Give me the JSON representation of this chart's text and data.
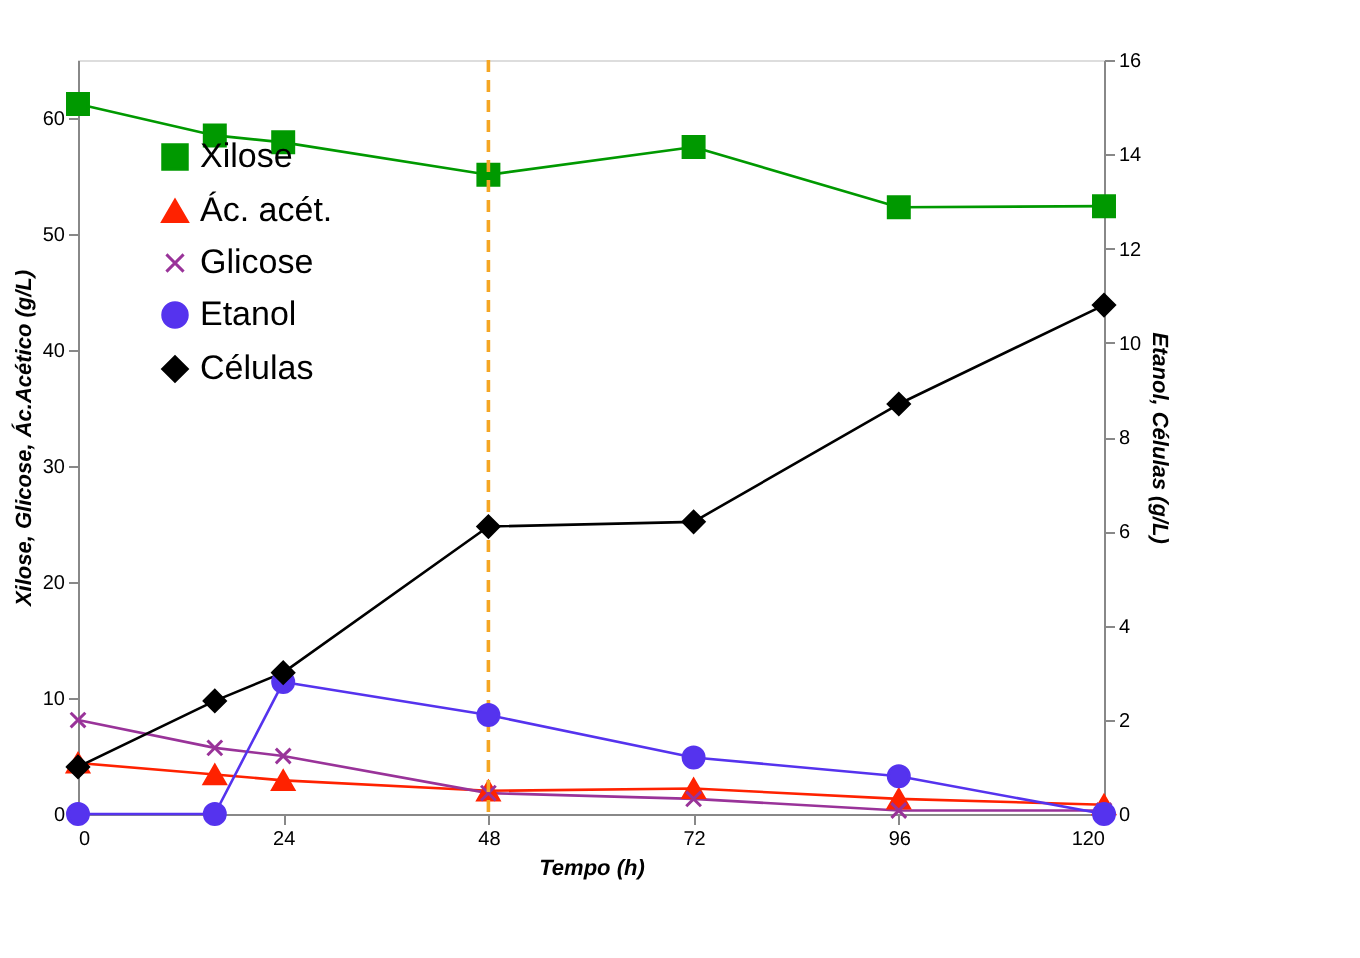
{
  "chart_data": {
    "type": "line",
    "xlabel": "Tempo (h)",
    "ylabel": "Xilose, Glicose, Ác.Acético (g/L)",
    "y2label": "Etanol, Células (g/L)",
    "x": [
      0,
      16,
      24,
      48,
      72,
      96,
      120
    ],
    "xlim": [
      0,
      120
    ],
    "xticks": [
      0,
      24,
      48,
      72,
      96,
      120
    ],
    "ylim": [
      0,
      65
    ],
    "yticks": [
      0,
      10,
      20,
      30,
      40,
      50,
      60
    ],
    "y2lim": [
      0,
      16
    ],
    "y2ticks": [
      0,
      2,
      4,
      6,
      8,
      10,
      12,
      14,
      16
    ],
    "series": [
      {
        "name": "Xilose",
        "color": "#009900",
        "marker": "square",
        "values": [
          61.2,
          58.5,
          57.9,
          55.1,
          57.5,
          52.3,
          52.4
        ]
      },
      {
        "name": "Ác. acét.",
        "color": "#ff2200",
        "marker": "triangle",
        "values": [
          4.4,
          3.4,
          2.9,
          2.0,
          2.2,
          1.3,
          0.8
        ]
      },
      {
        "name": "Glicose",
        "color": "#993399",
        "marker": "cross",
        "values": [
          8.1,
          5.7,
          5.0,
          1.8,
          1.3,
          0.3,
          0.3
        ]
      },
      {
        "name": "Etanol",
        "color": "#5533ee",
        "marker": "circle",
        "axis": "y2",
        "values": [
          0,
          0,
          2.8,
          2.1,
          1.2,
          0.8,
          0
        ]
      },
      {
        "name": "Células",
        "color": "#000000",
        "marker": "diamond",
        "axis": "y2",
        "values": [
          1.0,
          2.4,
          3.0,
          6.1,
          6.2,
          8.7,
          10.8
        ]
      }
    ],
    "ref_lines": [
      {
        "axis": "x",
        "value": 48,
        "color": "#f5a623",
        "line_style": "dashed"
      }
    ],
    "grid": false,
    "legend": "top left",
    "line_style": "solid"
  }
}
